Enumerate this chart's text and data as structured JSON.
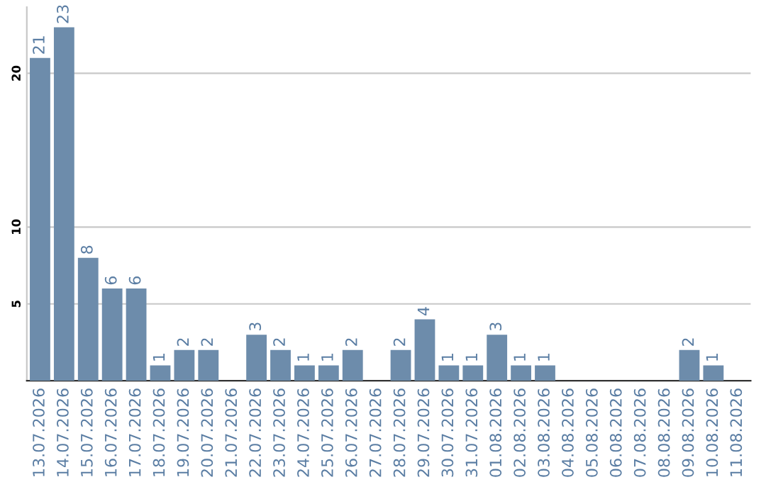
{
  "chart_data": {
    "type": "bar",
    "categories": [
      "13.07.2026",
      "14.07.2026",
      "15.07.2026",
      "16.07.2026",
      "17.07.2026",
      "18.07.2026",
      "19.07.2026",
      "20.07.2026",
      "21.07.2026",
      "22.07.2026",
      "23.07.2026",
      "24.07.2026",
      "25.07.2026",
      "26.07.2026",
      "27.07.2026",
      "28.07.2026",
      "29.07.2026",
      "30.07.2026",
      "31.07.2026",
      "01.08.2026",
      "02.08.2026",
      "03.08.2026",
      "04.08.2026",
      "05.08.2026",
      "06.08.2026",
      "07.08.2026",
      "08.08.2026",
      "09.08.2026",
      "10.08.2026",
      "11.08.2026"
    ],
    "values": [
      21,
      23,
      8,
      6,
      6,
      1,
      2,
      2,
      null,
      3,
      2,
      1,
      1,
      2,
      null,
      2,
      4,
      1,
      1,
      3,
      1,
      1,
      null,
      null,
      null,
      null,
      null,
      2,
      1,
      null
    ],
    "color": "#6d8cab",
    "ylim": [
      0,
      24.3
    ],
    "yticks": [
      5,
      10,
      20
    ],
    "grid": "y",
    "data_labels": true
  }
}
